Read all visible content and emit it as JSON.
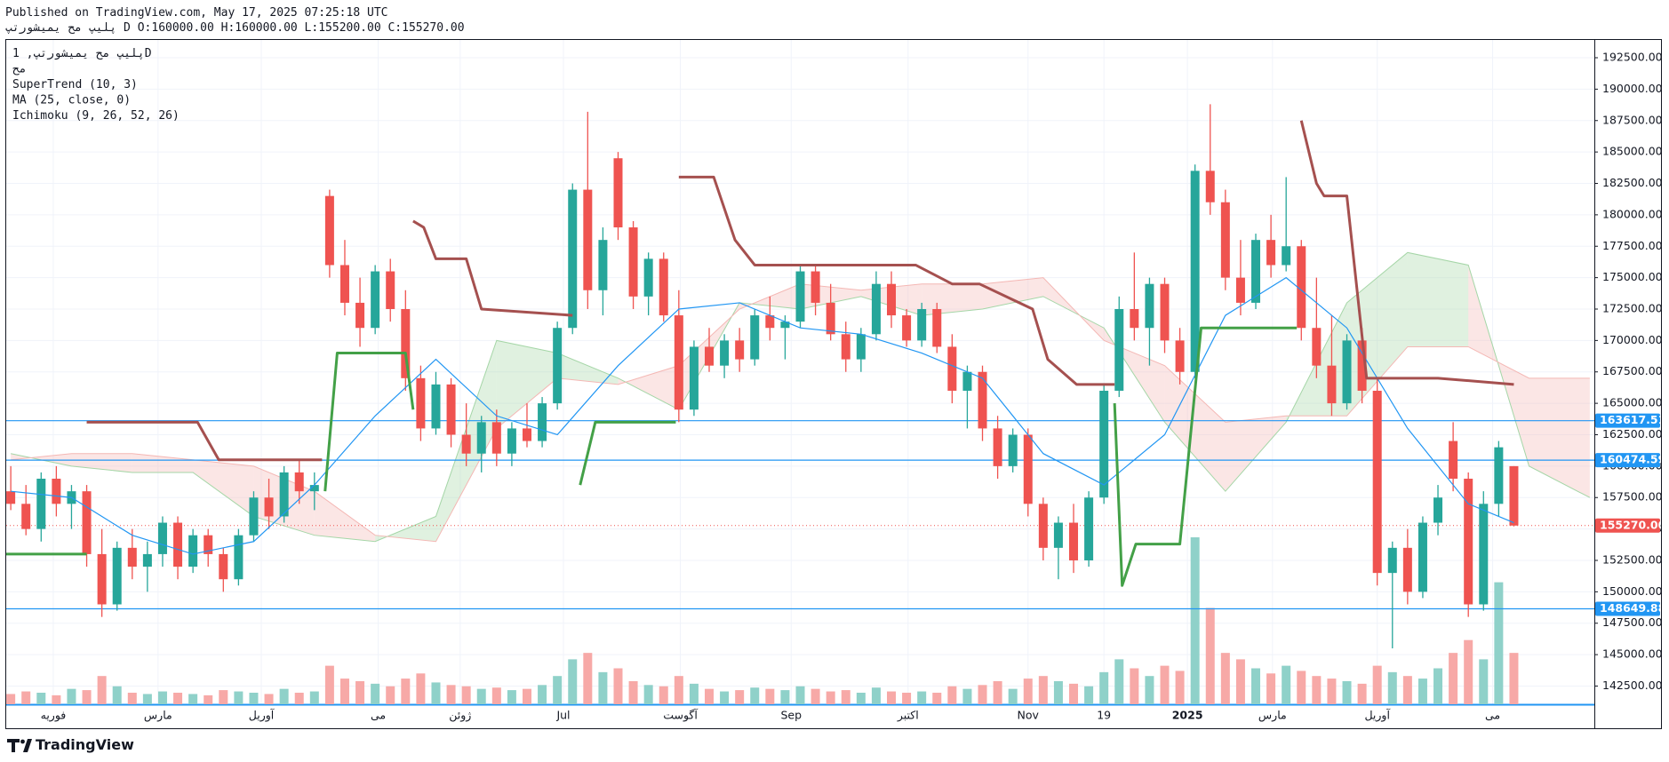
{
  "chart_data": {
    "type": "candlestick",
    "published": "Published on TradingView.com, May 17, 2025 07:25:18 UTC",
    "symbol_line": "پلیپ مح یمیشورتپ D O:160000.00 H:160000.00 L:155200.00 C:155270.00",
    "legend": [
      "پلیپ مح یمیشورتپ, 1D",
      "مح",
      "SuperTrend (10, 3)",
      "MA (25, close, 0)",
      "Ichimoku (9, 26, 52, 26)"
    ],
    "brand": "TradingView",
    "grid": true,
    "xlim": [
      -0.3,
      104.3
    ],
    "ylim": [
      141050,
      193985
    ],
    "xticks": [
      {
        "value": 2.8,
        "label": "فوریه"
      },
      {
        "value": 9.7,
        "label": "مارس"
      },
      {
        "value": 16.5,
        "label": "آوریل"
      },
      {
        "value": 24.2,
        "label": "می"
      },
      {
        "value": 29.6,
        "label": "ژوئن"
      },
      {
        "value": 36.4,
        "label": "Jul"
      },
      {
        "value": 44.1,
        "label": "آگوست"
      },
      {
        "value": 51.4,
        "label": "Sep"
      },
      {
        "value": 59.1,
        "label": "اکتبر"
      },
      {
        "value": 67.0,
        "label": "Nov"
      },
      {
        "value": 72.0,
        "label": "19"
      },
      {
        "value": 77.5,
        "label": "2025"
      },
      {
        "value": 83.1,
        "label": "مارس"
      },
      {
        "value": 90.0,
        "label": "آوریل"
      },
      {
        "value": 97.6,
        "label": "می"
      }
    ],
    "yticks": [
      {
        "value": 142500,
        "label": "142500.00"
      },
      {
        "value": 145000,
        "label": "145000.00"
      },
      {
        "value": 147500,
        "label": "147500.00"
      },
      {
        "value": 150000,
        "label": "150000.00"
      },
      {
        "value": 152500,
        "label": "152500.00"
      },
      {
        "value": 155000,
        "label": "155000.00"
      },
      {
        "value": 157500,
        "label": "157500.00"
      },
      {
        "value": 160000,
        "label": "160000.00"
      },
      {
        "value": 162500,
        "label": "162500.00"
      },
      {
        "value": 165000,
        "label": "165000.00"
      },
      {
        "value": 167500,
        "label": "167500.00"
      },
      {
        "value": 170000,
        "label": "170000.00"
      },
      {
        "value": 172500,
        "label": "172500.00"
      },
      {
        "value": 175000,
        "label": "175000.00"
      },
      {
        "value": 177500,
        "label": "177500.00"
      },
      {
        "value": 180000,
        "label": "180000.00"
      },
      {
        "value": 182500,
        "label": "182500.00"
      },
      {
        "value": 185000,
        "label": "185000.00"
      },
      {
        "value": 187500,
        "label": "187500.00"
      },
      {
        "value": 190000,
        "label": "190000.00"
      },
      {
        "value": 192500,
        "label": "192500.00"
      }
    ],
    "up_color": "#26a69a",
    "down_color": "#ef5350",
    "volume_up_color": "#8fd1c9",
    "volume_down_color": "#f7a9a7",
    "ohlc": [
      [
        158000,
        160000,
        156500,
        157000
      ],
      [
        157000,
        158500,
        154500,
        155000
      ],
      [
        155000,
        159500,
        154000,
        159000
      ],
      [
        159000,
        160000,
        156000,
        157000
      ],
      [
        157000,
        158500,
        155000,
        158000
      ],
      [
        158000,
        158500,
        152000,
        153000
      ],
      [
        153000,
        155000,
        148000,
        149000
      ],
      [
        149000,
        154000,
        148500,
        153500
      ],
      [
        153500,
        155000,
        151000,
        152000
      ],
      [
        152000,
        154000,
        150000,
        153000
      ],
      [
        153000,
        156000,
        152000,
        155500
      ],
      [
        155500,
        156000,
        151000,
        152000
      ],
      [
        152000,
        155000,
        151500,
        154500
      ],
      [
        154500,
        155000,
        152000,
        153000
      ],
      [
        153000,
        153500,
        150000,
        151000
      ],
      [
        151000,
        155000,
        150500,
        154500
      ],
      [
        154500,
        158000,
        154000,
        157500
      ],
      [
        157500,
        159000,
        155000,
        156000
      ],
      [
        156000,
        160000,
        155500,
        159500
      ],
      [
        159500,
        160500,
        157000,
        158000
      ],
      [
        158000,
        159500,
        156500,
        158500
      ],
      [
        181500,
        182000,
        175000,
        176000
      ],
      [
        176000,
        178000,
        172000,
        173000
      ],
      [
        173000,
        175000,
        169500,
        171000
      ],
      [
        171000,
        176000,
        170500,
        175500
      ],
      [
        175500,
        176500,
        171500,
        172500
      ],
      [
        172500,
        174000,
        166000,
        167000
      ],
      [
        167000,
        168000,
        162000,
        163000
      ],
      [
        163000,
        167500,
        162500,
        166500
      ],
      [
        166500,
        167000,
        161500,
        162500
      ],
      [
        162500,
        165000,
        160000,
        161000
      ],
      [
        161000,
        164000,
        159500,
        163500
      ],
      [
        163500,
        164500,
        160000,
        161000
      ],
      [
        161000,
        163500,
        160000,
        163000
      ],
      [
        163000,
        165000,
        161500,
        162000
      ],
      [
        162000,
        165500,
        161500,
        165000
      ],
      [
        165000,
        171500,
        164500,
        171000
      ],
      [
        171000,
        182500,
        170500,
        182000
      ],
      [
        182000,
        188200,
        172500,
        174000
      ],
      [
        174000,
        179000,
        172000,
        178000
      ],
      [
        184500,
        185000,
        178000,
        179000
      ],
      [
        179000,
        179500,
        172500,
        173500
      ],
      [
        173500,
        177000,
        172000,
        176500
      ],
      [
        176500,
        177000,
        171500,
        172000
      ],
      [
        172000,
        174000,
        163500,
        164500
      ],
      [
        164500,
        170000,
        164000,
        169500
      ],
      [
        169500,
        171000,
        167500,
        168000
      ],
      [
        168000,
        170500,
        167000,
        170000
      ],
      [
        170000,
        171000,
        167500,
        168500
      ],
      [
        168500,
        172500,
        168000,
        172000
      ],
      [
        172000,
        173500,
        170000,
        171000
      ],
      [
        171000,
        172000,
        168500,
        171500
      ],
      [
        171500,
        176000,
        171000,
        175500
      ],
      [
        175500,
        176000,
        172000,
        173000
      ],
      [
        173000,
        174500,
        170000,
        170500
      ],
      [
        170500,
        171500,
        167500,
        168500
      ],
      [
        168500,
        171000,
        167500,
        170500
      ],
      [
        170500,
        175500,
        170000,
        174500
      ],
      [
        174500,
        175500,
        171000,
        172000
      ],
      [
        172000,
        172500,
        169500,
        170000
      ],
      [
        170000,
        173000,
        169500,
        172500
      ],
      [
        172500,
        173000,
        169000,
        169500
      ],
      [
        169500,
        170500,
        165000,
        166000
      ],
      [
        166000,
        168000,
        163000,
        167500
      ],
      [
        167500,
        168000,
        162000,
        163000
      ],
      [
        163000,
        164000,
        159000,
        160000
      ],
      [
        160000,
        163000,
        159500,
        162500
      ],
      [
        162500,
        163000,
        156000,
        157000
      ],
      [
        157000,
        157500,
        152500,
        153500
      ],
      [
        153500,
        156000,
        151000,
        155500
      ],
      [
        155500,
        157000,
        151500,
        152500
      ],
      [
        152500,
        158000,
        152000,
        157500
      ],
      [
        157500,
        166500,
        157000,
        166000
      ],
      [
        166000,
        173500,
        165500,
        172500
      ],
      [
        172500,
        177000,
        170000,
        171000
      ],
      [
        171000,
        175000,
        168000,
        174500
      ],
      [
        174500,
        175000,
        169000,
        170000
      ],
      [
        170000,
        171000,
        166500,
        167500
      ],
      [
        167500,
        184000,
        167000,
        183500
      ],
      [
        183500,
        188800,
        180000,
        181000
      ],
      [
        181000,
        182000,
        174000,
        175000
      ],
      [
        175000,
        178000,
        172000,
        173000
      ],
      [
        173000,
        178500,
        172500,
        178000
      ],
      [
        178000,
        180000,
        175000,
        176000
      ],
      [
        176000,
        183000,
        175500,
        177500
      ],
      [
        177500,
        178000,
        170000,
        171000
      ],
      [
        171000,
        175000,
        167000,
        168000
      ],
      [
        168000,
        172000,
        164000,
        165000
      ],
      [
        165000,
        170500,
        164500,
        170000
      ],
      [
        170000,
        171000,
        165000,
        166000
      ],
      [
        166000,
        167000,
        150500,
        151500
      ],
      [
        151500,
        154000,
        145500,
        153500
      ],
      [
        153500,
        155000,
        149000,
        150000
      ],
      [
        150000,
        156000,
        149500,
        155500
      ],
      [
        155500,
        158500,
        154500,
        157500
      ],
      [
        162000,
        163500,
        158000,
        159000
      ],
      [
        159000,
        159500,
        148000,
        149000
      ],
      [
        149000,
        158000,
        148500,
        157000
      ],
      [
        157000,
        162000,
        156000,
        161500
      ],
      [
        160000,
        160000,
        155200,
        155270
      ]
    ],
    "volume": [
      8,
      10,
      9,
      7,
      12,
      11,
      22,
      14,
      9,
      8,
      10,
      9,
      8,
      7,
      11,
      10,
      9,
      8,
      12,
      9,
      10,
      30,
      20,
      18,
      16,
      14,
      20,
      24,
      17,
      15,
      14,
      12,
      13,
      11,
      12,
      15,
      22,
      35,
      40,
      25,
      28,
      18,
      15,
      14,
      22,
      16,
      12,
      10,
      11,
      13,
      12,
      11,
      14,
      12,
      10,
      11,
      9,
      13,
      10,
      9,
      10,
      9,
      14,
      12,
      15,
      18,
      12,
      20,
      22,
      18,
      16,
      14,
      25,
      35,
      28,
      22,
      30,
      26,
      130,
      75,
      40,
      35,
      28,
      24,
      30,
      26,
      22,
      20,
      18,
      16,
      30,
      25,
      22,
      20,
      28,
      40,
      50,
      35,
      95,
      40
    ],
    "ma": {
      "color": "#2196f3",
      "x": [
        0,
        4,
        8,
        12,
        16,
        20,
        24,
        28,
        32,
        36,
        40,
        44,
        48,
        52,
        56,
        60,
        64,
        68,
        72,
        76,
        80,
        84,
        88,
        92,
        96,
        99
      ],
      "values": [
        158000,
        157500,
        154500,
        153000,
        154000,
        158500,
        164000,
        168500,
        164000,
        162500,
        168000,
        172500,
        173000,
        171000,
        170500,
        169000,
        167000,
        161000,
        158500,
        162500,
        172000,
        175000,
        171000,
        163000,
        157000,
        155500
      ]
    },
    "supertrend_down": {
      "color": "#a5504f",
      "pieces": [
        {
          "x": [
            5,
            12.3,
            13.7,
            20.5
          ],
          "values": [
            163500,
            163500,
            160500,
            160500
          ]
        },
        {
          "x": [
            26.5,
            27.2,
            28,
            30,
            31,
            37
          ],
          "values": [
            179500,
            179000,
            176500,
            176500,
            172500,
            172000
          ]
        },
        {
          "x": [
            44,
            46.3,
            47.7,
            49,
            59.6,
            62,
            63.8,
            67.3,
            68.3,
            70.2,
            72.7
          ],
          "values": [
            183000,
            183000,
            178000,
            176000,
            176000,
            174500,
            174500,
            172500,
            168500,
            166500,
            166500
          ]
        },
        {
          "x": [
            85,
            86,
            86.5,
            88,
            89.3,
            94,
            99
          ],
          "values": [
            187500,
            182500,
            181500,
            181500,
            167000,
            167000,
            166500
          ]
        }
      ]
    },
    "supertrend_up": {
      "color": "#43a047",
      "pieces": [
        {
          "x": [
            -0.3,
            5
          ],
          "values": [
            153000,
            153000
          ]
        },
        {
          "x": [
            20.7,
            21.5,
            26,
            26.5
          ],
          "values": [
            158000,
            169000,
            169000,
            164500
          ]
        },
        {
          "x": [
            37.5,
            38.5,
            43.8
          ],
          "values": [
            158500,
            163500,
            163500
          ]
        },
        {
          "x": [
            72.7,
            73.2,
            74.1,
            77,
            78.4,
            84.7
          ],
          "values": [
            165000,
            150500,
            153800,
            153800,
            171000,
            171000
          ]
        }
      ]
    },
    "ichimoku": {
      "up_color": "#a5d6a7",
      "down_color": "#f4b7b4",
      "x": [
        0,
        4,
        8,
        12,
        16,
        20,
        24,
        28,
        32,
        36,
        40,
        44,
        48,
        52,
        56,
        60,
        64,
        68,
        72,
        76,
        80,
        84,
        88,
        92,
        96,
        100,
        104
      ],
      "span_a": [
        161000,
        160000,
        159500,
        159500,
        156000,
        154500,
        154000,
        156000,
        170000,
        169000,
        167000,
        164500,
        173000,
        172500,
        173500,
        172000,
        172500,
        173500,
        171000,
        163500,
        158000,
        163500,
        173000,
        177000,
        176000,
        160000,
        157500
      ],
      "span_b": [
        160500,
        161000,
        161000,
        160500,
        160000,
        158000,
        154500,
        154000,
        163000,
        167000,
        166500,
        168000,
        172500,
        174500,
        174000,
        174500,
        174500,
        175000,
        170000,
        168000,
        163500,
        164000,
        164000,
        169500,
        169500,
        167000,
        167000
      ]
    },
    "hline_color": "#2196f3",
    "hlines": [
      163617.51,
      160474.59,
      148649.88
    ],
    "last_price": {
      "value": 155270,
      "label": "155270.00"
    }
  }
}
